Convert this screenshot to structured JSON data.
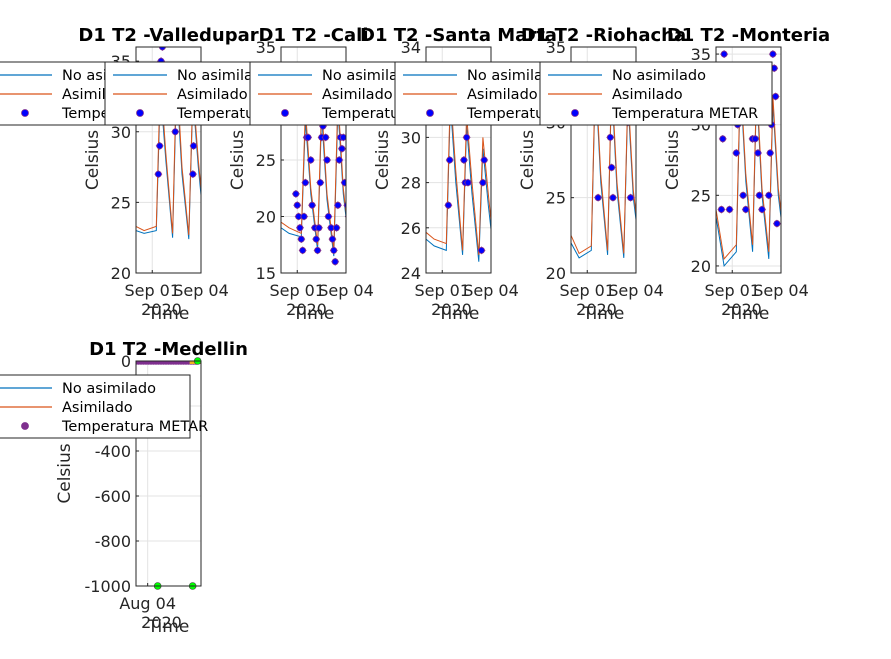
{
  "figure": {
    "background": "#ffffff"
  },
  "styles": {
    "no_asimilado_color": "#0072BD",
    "asimilado_color": "#D95319",
    "metar_face": "#0000FF",
    "metar_edge": "#7E2F8E",
    "medellin_metar_face": "#7E2F8E",
    "medellin_zero_color": "#EDB120",
    "medellin_extra_color": "#00FF00"
  },
  "chart_data": [
    {
      "type": "line",
      "title": "D1 T2  -Valledupar",
      "ylabel": "Celsius",
      "xlabel": "Time",
      "x_ticks": [
        "Sep 01",
        "Sep 04"
      ],
      "x_year": "2020",
      "x_range": [
        "2020-08-31",
        "2020-09-04"
      ],
      "ylim": [
        20,
        36
      ],
      "y_ticks": [
        20,
        25,
        30,
        35
      ],
      "grid": true,
      "legend": {
        "location": "top-left",
        "entries": [
          "No asimilado",
          "Asimilado",
          "Temperatura METAR"
        ]
      },
      "series": [
        {
          "name": "No asimilado",
          "x": [
            "2020-08-31 00:00",
            "2020-08-31 12:00",
            "2020-09-01 06:00",
            "2020-09-01 12:00",
            "2020-09-01 20:00",
            "2020-09-02 06:00",
            "2020-09-02 12:00",
            "2020-09-02 20:00",
            "2020-09-03 06:00",
            "2020-09-03 12:00",
            "2020-09-03 20:00",
            "2020-09-04 06:00",
            "2020-09-04 12:00",
            "2020-09-04 20:00"
          ],
          "values": [
            23.0,
            22.8,
            23.0,
            33.0,
            28.0,
            22.5,
            33.5,
            27.0,
            22.4,
            32.5,
            27.5,
            22.5,
            31.0,
            26.0
          ]
        },
        {
          "name": "Asimilado",
          "x": [
            "2020-08-31 00:00",
            "2020-08-31 12:00",
            "2020-09-01 06:00",
            "2020-09-01 12:00",
            "2020-09-01 20:00",
            "2020-09-02 06:00",
            "2020-09-02 12:00",
            "2020-09-02 20:00",
            "2020-09-03 06:00",
            "2020-09-03 12:00",
            "2020-09-03 20:00",
            "2020-09-04 06:00",
            "2020-09-04 12:00",
            "2020-09-04 20:00"
          ],
          "values": [
            23.3,
            23.0,
            23.3,
            34.0,
            28.5,
            22.8,
            34.5,
            27.5,
            22.7,
            33.0,
            28.0,
            22.8,
            31.5,
            26.5
          ]
        },
        {
          "name": "Temperatura METAR",
          "x": [
            "2020-09-01 09:00",
            "2020-09-01 11:00",
            "2020-09-01 13:00",
            "2020-09-01 15:00",
            "2020-09-02 10:00",
            "2020-09-02 12:00",
            "2020-09-02 14:00",
            "2020-09-03 12:00",
            "2020-09-03 13:00"
          ],
          "values": [
            27,
            29,
            35,
            36,
            30,
            31,
            31,
            27,
            29
          ]
        }
      ]
    },
    {
      "type": "line",
      "title": "D1 T2  -Cali",
      "ylabel": "Celsius",
      "xlabel": "Time",
      "x_ticks": [
        "Sep 01",
        "Sep 04"
      ],
      "x_year": "2020",
      "x_range": [
        "2020-08-31",
        "2020-09-04"
      ],
      "ylim": [
        15,
        35
      ],
      "y_ticks": [
        15,
        20,
        25,
        30,
        35
      ],
      "grid": true,
      "legend": {
        "location": "top-left",
        "entries": [
          "No asimilado",
          "Asimilado",
          "Temperatura METAR"
        ]
      },
      "series": [
        {
          "name": "No asimilado",
          "x": [
            "2020-08-31 00:00",
            "2020-08-31 12:00",
            "2020-09-01 06:00",
            "2020-09-01 12:00",
            "2020-09-01 20:00",
            "2020-09-02 06:00",
            "2020-09-02 12:00",
            "2020-09-02 20:00",
            "2020-09-03 06:00",
            "2020-09-03 12:00",
            "2020-09-03 20:00",
            "2020-09-04 06:00",
            "2020-09-04 12:00",
            "2020-09-04 20:00"
          ],
          "values": [
            19.0,
            18.5,
            18.2,
            28.5,
            22.0,
            17.0,
            29.0,
            21.5,
            16.5,
            29.5,
            22.0,
            16.8,
            30.0,
            23.0
          ]
        },
        {
          "name": "Asimilado",
          "x": [
            "2020-08-31 00:00",
            "2020-08-31 12:00",
            "2020-09-01 06:00",
            "2020-09-01 12:00",
            "2020-09-01 20:00",
            "2020-09-02 06:00",
            "2020-09-02 12:00",
            "2020-09-02 20:00",
            "2020-09-03 06:00",
            "2020-09-03 12:00",
            "2020-09-03 20:00",
            "2020-09-04 06:00",
            "2020-09-04 12:00",
            "2020-09-04 20:00"
          ],
          "values": [
            19.5,
            19.0,
            18.5,
            29.5,
            22.5,
            17.5,
            30.0,
            22.0,
            17.0,
            30.5,
            22.5,
            17.0,
            31.0,
            23.5
          ]
        },
        {
          "name": "Temperatura METAR",
          "x": [
            "2020-08-31 22:00",
            "2020-09-01 00:00",
            "2020-09-01 02:00",
            "2020-09-01 04:00",
            "2020-09-01 06:00",
            "2020-09-01 08:00",
            "2020-09-01 10:00",
            "2020-09-01 12:00",
            "2020-09-01 14:00",
            "2020-09-01 16:00",
            "2020-09-01 18:00",
            "2020-09-01 20:00",
            "2020-09-01 22:00",
            "2020-09-02 02:00",
            "2020-09-02 04:00",
            "2020-09-02 06:00",
            "2020-09-02 08:00",
            "2020-09-02 10:00",
            "2020-09-02 12:00",
            "2020-09-02 14:00",
            "2020-09-02 16:00",
            "2020-09-02 18:00",
            "2020-09-02 20:00",
            "2020-09-02 22:00",
            "2020-09-03 02:00",
            "2020-09-03 04:00",
            "2020-09-03 06:00",
            "2020-09-03 08:00",
            "2020-09-03 10:00",
            "2020-09-03 12:00",
            "2020-09-03 14:00",
            "2020-09-03 16:00",
            "2020-09-03 18:00",
            "2020-09-03 20:00",
            "2020-09-03 22:00",
            "2020-09-04 02:00",
            "2020-09-04 04:00",
            "2020-09-04 06:00",
            "2020-09-04 08:00",
            "2020-09-04 10:00",
            "2020-09-04 12:00",
            "2020-09-04 14:00",
            "2020-09-04 16:00",
            "2020-09-04 18:00",
            "2020-09-04 20:00"
          ],
          "values": [
            22,
            21,
            20,
            19,
            18,
            17,
            20,
            23,
            27,
            27,
            29,
            25,
            21,
            19,
            18,
            17,
            19,
            23,
            27,
            28,
            31,
            27,
            25,
            20,
            19,
            18,
            17,
            16,
            19,
            21,
            25,
            27,
            26,
            27,
            23,
            21,
            20,
            18,
            16,
            17,
            21,
            27,
            28,
            31,
            26
          ]
        }
      ]
    },
    {
      "type": "line",
      "title": "D1 T2  -Santa Marta",
      "ylabel": "Celsius",
      "xlabel": "Time",
      "x_ticks": [
        "Sep 01",
        "Sep 04"
      ],
      "x_year": "2020",
      "x_range": [
        "2020-08-31",
        "2020-09-04"
      ],
      "ylim": [
        24,
        34
      ],
      "y_ticks": [
        24,
        26,
        28,
        30,
        32,
        34
      ],
      "grid": true,
      "legend": {
        "location": "top-left",
        "entries": [
          "No asimilado",
          "Asimilado",
          "Temperatura METAR"
        ]
      },
      "series": [
        {
          "name": "No asimilado",
          "x": [
            "2020-08-31 00:00",
            "2020-08-31 12:00",
            "2020-09-01 06:00",
            "2020-09-01 12:00",
            "2020-09-01 20:00",
            "2020-09-02 06:00",
            "2020-09-02 12:00",
            "2020-09-02 20:00",
            "2020-09-03 06:00",
            "2020-09-03 12:00",
            "2020-09-03 20:00",
            "2020-09-04 06:00",
            "2020-09-04 12:00",
            "2020-09-04 20:00"
          ],
          "values": [
            25.5,
            25.2,
            25.0,
            31.5,
            28.0,
            24.8,
            30.5,
            27.5,
            24.5,
            29.5,
            27.0,
            24.3,
            29.0,
            26.5
          ]
        },
        {
          "name": "Asimilado",
          "x": [
            "2020-08-31 00:00",
            "2020-08-31 12:00",
            "2020-09-01 06:00",
            "2020-09-01 12:00",
            "2020-09-01 20:00",
            "2020-09-02 06:00",
            "2020-09-02 12:00",
            "2020-09-02 20:00",
            "2020-09-03 06:00",
            "2020-09-03 12:00",
            "2020-09-03 20:00",
            "2020-09-04 06:00",
            "2020-09-04 12:00",
            "2020-09-04 20:00"
          ],
          "values": [
            25.8,
            25.5,
            25.3,
            32.0,
            28.5,
            25.0,
            31.0,
            28.0,
            24.8,
            30.0,
            27.5,
            24.5,
            29.5,
            27.0
          ]
        },
        {
          "name": "Temperatura METAR",
          "x": [
            "2020-09-01 09:00",
            "2020-09-01 11:00",
            "2020-09-01 13:00",
            "2020-09-02 08:00",
            "2020-09-02 10:00",
            "2020-09-02 12:00",
            "2020-09-02 14:00",
            "2020-09-03 10:00",
            "2020-09-03 12:00",
            "2020-09-03 14:00",
            "2020-09-04 10:00",
            "2020-09-04 12:00",
            "2020-09-04 14:00"
          ],
          "values": [
            27,
            29,
            31,
            29,
            28,
            30,
            28,
            25,
            28,
            29,
            30,
            30,
            30
          ]
        }
      ]
    },
    {
      "type": "line",
      "title": "D1 T2  -Riohacha",
      "ylabel": "Celsius",
      "xlabel": "Time",
      "x_ticks": [
        "Sep 01",
        "Sep 04"
      ],
      "x_year": "2020",
      "x_range": [
        "2020-08-31",
        "2020-09-04"
      ],
      "ylim": [
        20,
        35
      ],
      "y_ticks": [
        20,
        25,
        30,
        35
      ],
      "grid": true,
      "legend": {
        "location": "top-left",
        "entries": [
          "No asimilado",
          "Asimilado",
          "Temperatura METAR"
        ]
      },
      "series": [
        {
          "name": "No asimilado",
          "x": [
            "2020-08-31 00:00",
            "2020-08-31 12:00",
            "2020-09-01 06:00",
            "2020-09-01 12:00",
            "2020-09-01 20:00",
            "2020-09-02 06:00",
            "2020-09-02 12:00",
            "2020-09-02 20:00",
            "2020-09-03 06:00",
            "2020-09-03 12:00",
            "2020-09-03 20:00",
            "2020-09-04 06:00",
            "2020-09-04 12:00",
            "2020-09-04 20:00"
          ],
          "values": [
            22.0,
            21.0,
            21.5,
            33.0,
            26.0,
            21.2,
            32.5,
            25.5,
            21.0,
            31.5,
            25.0,
            21.3,
            31.0,
            24.5
          ]
        },
        {
          "name": "Asimilado",
          "x": [
            "2020-08-31 00:00",
            "2020-08-31 12:00",
            "2020-09-01 06:00",
            "2020-09-01 12:00",
            "2020-09-01 20:00",
            "2020-09-02 06:00",
            "2020-09-02 12:00",
            "2020-09-02 20:00",
            "2020-09-03 06:00",
            "2020-09-03 12:00",
            "2020-09-03 20:00",
            "2020-09-04 06:00",
            "2020-09-04 12:00",
            "2020-09-04 20:00"
          ],
          "values": [
            22.5,
            21.3,
            21.8,
            33.5,
            26.5,
            21.5,
            33.0,
            26.0,
            21.3,
            32.0,
            25.5,
            21.5,
            31.5,
            25.0
          ]
        },
        {
          "name": "Temperatura METAR",
          "x": [
            "2020-09-01 12:00",
            "2020-09-01 16:00",
            "2020-09-02 10:00",
            "2020-09-02 12:00",
            "2020-09-02 14:00",
            "2020-09-03 12:00",
            "2020-09-03 16:00"
          ],
          "values": [
            31,
            25,
            29,
            27,
            25,
            30,
            25
          ]
        }
      ]
    },
    {
      "type": "line",
      "title": "D1 T2  -Monteria",
      "ylabel": "Celsius",
      "xlabel": "Time",
      "x_ticks": [
        "Sep 01",
        "Sep 04"
      ],
      "x_year": "2020",
      "x_range": [
        "2020-08-31",
        "2020-09-04"
      ],
      "ylim": [
        19.5,
        35.5
      ],
      "y_ticks": [
        20,
        25,
        30,
        35
      ],
      "grid": true,
      "legend": {
        "location": "top-left",
        "entries": [
          "No asimilado",
          "Asimilado",
          "Temperatura METAR"
        ]
      },
      "series": [
        {
          "name": "No asimilado",
          "x": [
            "2020-08-31 00:00",
            "2020-08-31 12:00",
            "2020-09-01 06:00",
            "2020-09-01 12:00",
            "2020-09-01 20:00",
            "2020-09-02 06:00",
            "2020-09-02 12:00",
            "2020-09-02 20:00",
            "2020-09-03 06:00",
            "2020-09-03 12:00",
            "2020-09-03 20:00",
            "2020-09-04 06:00",
            "2020-09-04 12:00",
            "2020-09-04 20:00"
          ],
          "values": [
            23.5,
            20.0,
            21.0,
            33.0,
            26.0,
            21.0,
            32.5,
            25.0,
            20.5,
            31.5,
            25.0,
            21.0,
            31.0,
            24.5
          ]
        },
        {
          "name": "Asimilado",
          "x": [
            "2020-08-31 00:00",
            "2020-08-31 12:00",
            "2020-09-01 06:00",
            "2020-09-01 12:00",
            "2020-09-01 20:00",
            "2020-09-02 06:00",
            "2020-09-02 12:00",
            "2020-09-02 20:00",
            "2020-09-03 06:00",
            "2020-09-03 12:00",
            "2020-09-03 20:00",
            "2020-09-04 06:00",
            "2020-09-04 12:00",
            "2020-09-04 20:00"
          ],
          "values": [
            24.0,
            20.5,
            21.5,
            33.5,
            26.5,
            21.5,
            33.0,
            25.5,
            21.0,
            32.0,
            25.5,
            21.3,
            31.5,
            25.0
          ]
        },
        {
          "name": "Temperatura METAR",
          "x": [
            "2020-08-31 08:00",
            "2020-08-31 10:00",
            "2020-08-31 12:00",
            "2020-08-31 16:00",
            "2020-08-31 20:00",
            "2020-09-01 06:00",
            "2020-09-01 08:00",
            "2020-09-01 12:00",
            "2020-09-01 14:00",
            "2020-09-01 16:00",
            "2020-09-01 20:00",
            "2020-09-02 06:00",
            "2020-09-02 10:00",
            "2020-09-02 12:00",
            "2020-09-02 14:00",
            "2020-09-02 16:00",
            "2020-09-02 20:00",
            "2020-09-03 06:00",
            "2020-09-03 08:00",
            "2020-09-03 10:00",
            "2020-09-03 12:00",
            "2020-09-03 14:00",
            "2020-09-03 16:00",
            "2020-09-03 18:00",
            "2020-09-04 08:00",
            "2020-09-04 12:00",
            "2020-09-04 16:00",
            "2020-09-04 20:00"
          ],
          "values": [
            24,
            29,
            35,
            31,
            24,
            28,
            30,
            33,
            31,
            25,
            24,
            29,
            29,
            31,
            28,
            25,
            24,
            25,
            28,
            30,
            35,
            34,
            32,
            23,
            26,
            35,
            32,
            25
          ]
        }
      ]
    },
    {
      "type": "line",
      "title": "D1 T2  -Medellin",
      "ylabel": "Celsius",
      "xlabel": "Time",
      "x_ticks": [
        "Aug 04"
      ],
      "x_year": "2020",
      "x_range": [
        "2020-07-28",
        "2020-09-05"
      ],
      "ylim": [
        -1000,
        0
      ],
      "y_ticks": [
        -1000,
        -800,
        -600,
        -400,
        -200,
        0
      ],
      "grid": true,
      "legend": {
        "location": "top-left",
        "entries": [
          "No asimilado",
          "Asimilado",
          "Temperatura METAR"
        ]
      },
      "series": [
        {
          "name": "No asimilado",
          "x": [
            "2020-07-28",
            "2020-08-10",
            "2020-08-25",
            "2020-09-05"
          ],
          "values": [
            18,
            20,
            19,
            21
          ]
        },
        {
          "name": "Asimilado",
          "x": [
            "2020-07-28",
            "2020-08-10",
            "2020-08-25",
            "2020-09-05"
          ],
          "values": [
            19,
            21,
            20,
            22
          ]
        },
        {
          "name": "Temperatura METAR",
          "x_range": [
            "2020-07-28",
            "2020-09-03"
          ],
          "values_range": [
            -6,
            4
          ]
        }
      ],
      "extra_markers": {
        "zeros": {
          "x": [
            "2020-08-31",
            "2020-09-01",
            "2020-09-02",
            "2020-09-03",
            "2020-09-04"
          ],
          "values": [
            0,
            0,
            0,
            0,
            0
          ]
        },
        "green": {
          "x": [
            "2020-08-10",
            "2020-08-31",
            "2020-09-03"
          ],
          "values": [
            -1000,
            -1000,
            0
          ]
        }
      }
    }
  ]
}
